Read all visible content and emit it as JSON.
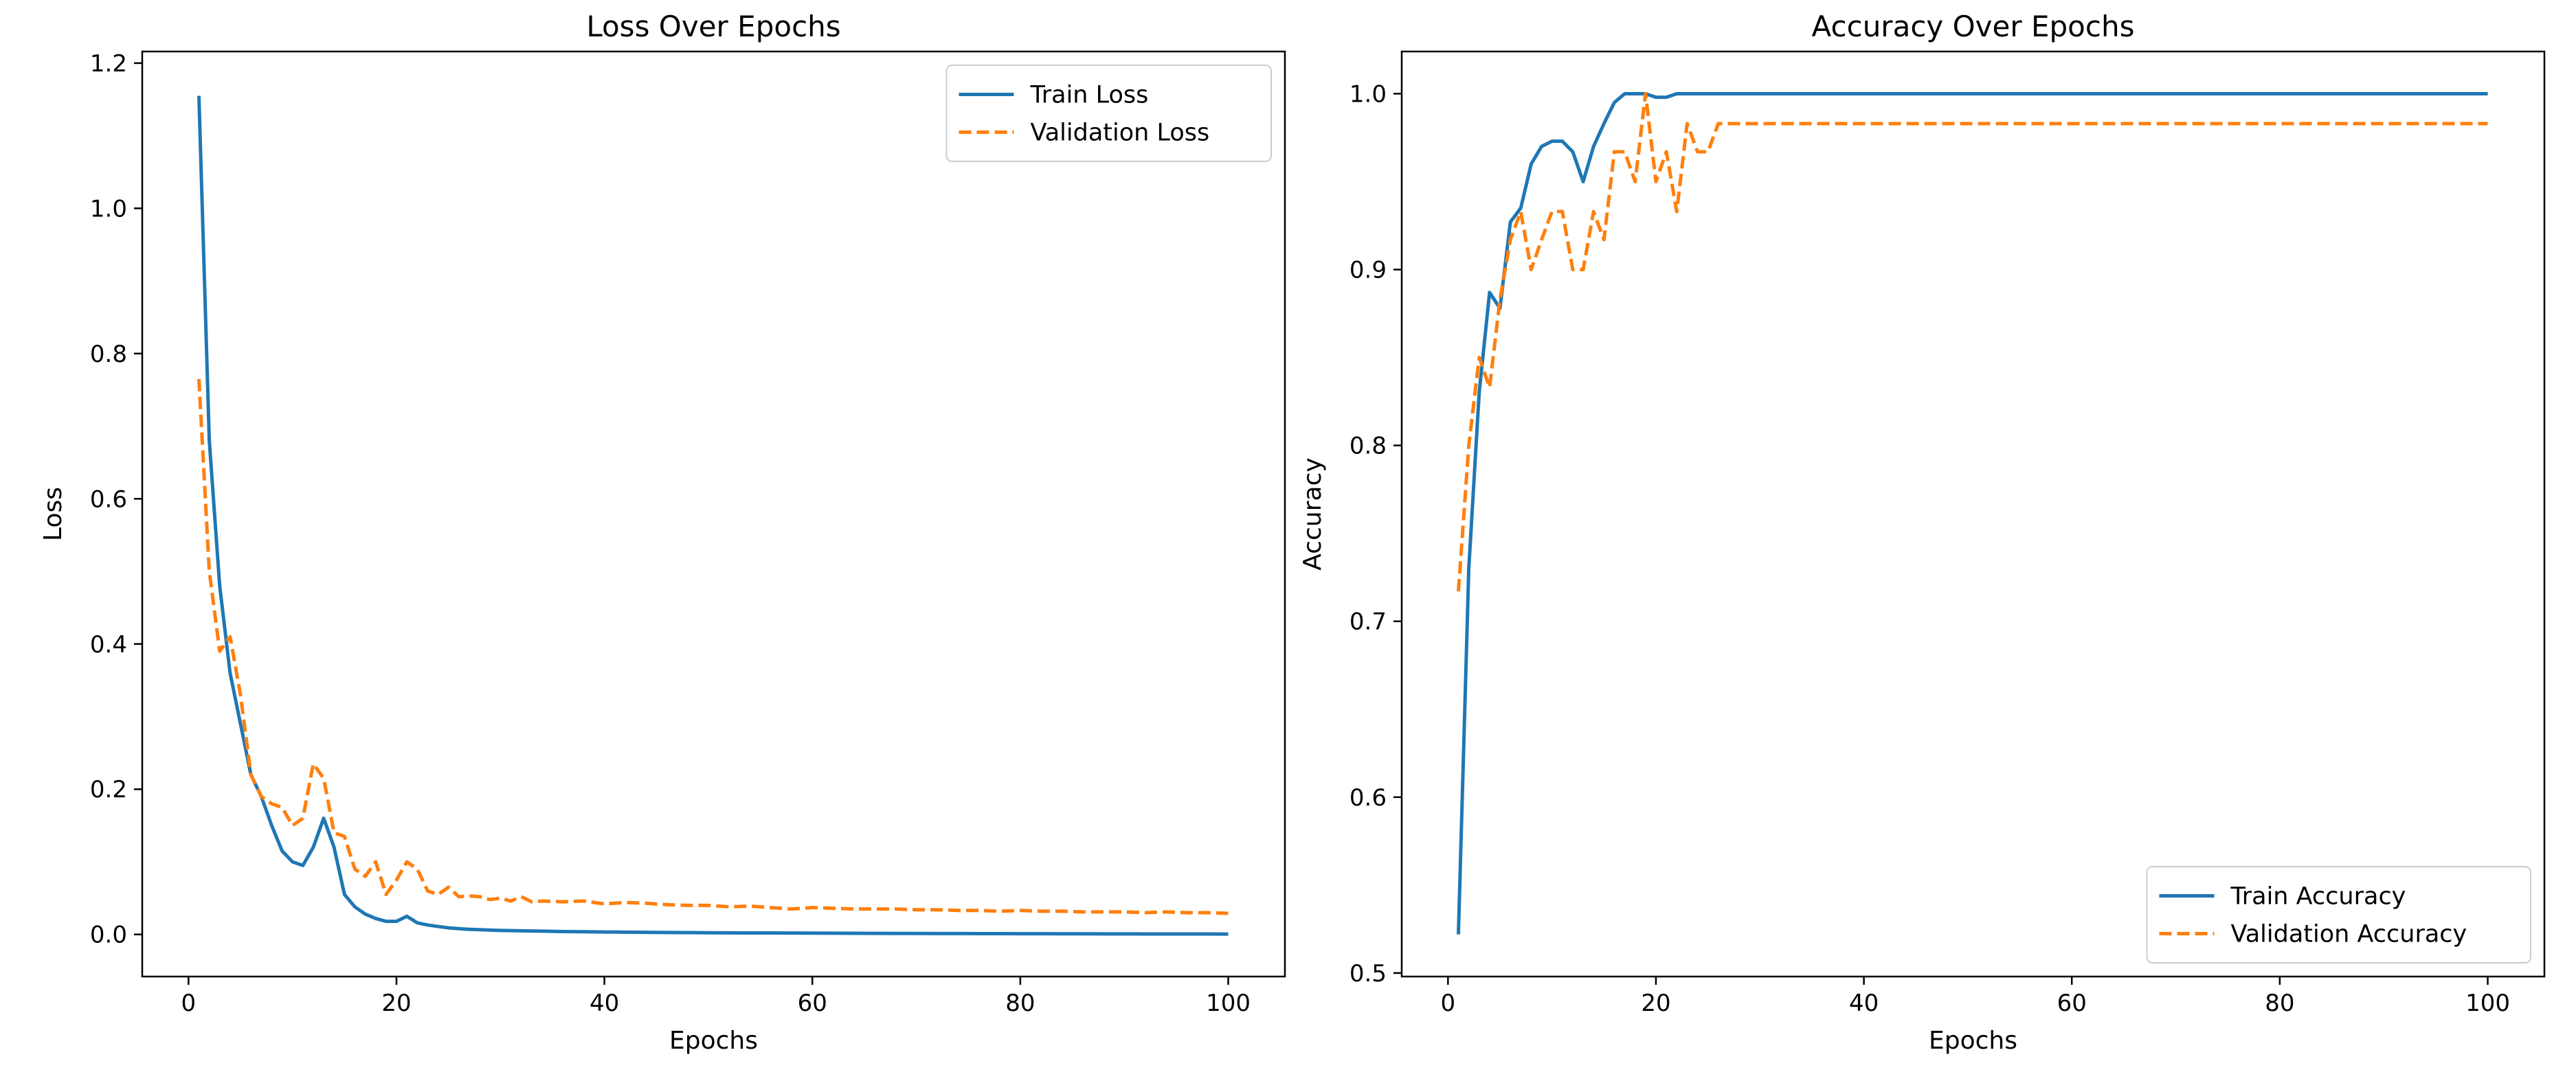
{
  "chart_data": [
    {
      "type": "line",
      "title": "Loss Over Epochs",
      "xlabel": "Epochs",
      "ylabel": "Loss",
      "xlim": [
        -4.45,
        105.45
      ],
      "ylim": [
        -0.058,
        1.216
      ],
      "xticks": [
        0,
        20,
        40,
        60,
        80,
        100
      ],
      "yticks": [
        0.0,
        0.2,
        0.4,
        0.6,
        0.8,
        1.0,
        1.2
      ],
      "ytick_decimals": 1,
      "legend_position": "upper right",
      "grid": false,
      "series": [
        {
          "name": "Train Loss",
          "color": "#1f77b4",
          "style": "solid",
          "x": [
            1,
            2,
            3,
            4,
            5,
            6,
            7,
            8,
            9,
            10,
            11,
            12,
            13,
            14,
            15,
            16,
            17,
            18,
            19,
            20,
            21,
            22,
            23,
            24,
            25,
            26,
            27,
            28,
            29,
            30,
            32,
            34,
            36,
            38,
            40,
            42,
            44,
            46,
            48,
            50,
            52,
            54,
            56,
            58,
            60,
            62,
            64,
            66,
            68,
            70,
            72,
            74,
            76,
            78,
            80,
            82,
            84,
            86,
            88,
            90,
            92,
            94,
            96,
            98,
            100
          ],
          "y": [
            1.155,
            0.68,
            0.48,
            0.36,
            0.29,
            0.22,
            0.19,
            0.15,
            0.115,
            0.1,
            0.095,
            0.12,
            0.16,
            0.12,
            0.055,
            0.038,
            0.028,
            0.022,
            0.018,
            0.018,
            0.025,
            0.016,
            0.013,
            0.011,
            0.009,
            0.008,
            0.007,
            0.0065,
            0.006,
            0.0055,
            0.005,
            0.0045,
            0.004,
            0.0037,
            0.0034,
            0.0031,
            0.0029,
            0.0027,
            0.0025,
            0.0023,
            0.0022,
            0.0021,
            0.002,
            0.0019,
            0.0018,
            0.0017,
            0.0016,
            0.0015,
            0.0014,
            0.0013,
            0.0012,
            0.0012,
            0.0011,
            0.0011,
            0.001,
            0.001,
            0.0009,
            0.0009,
            0.0008,
            0.0008,
            0.0007,
            0.0007,
            0.0006,
            0.0006,
            0.0005
          ]
        },
        {
          "name": "Validation Loss",
          "color": "#ff7f0e",
          "style": "dashed",
          "x": [
            1,
            2,
            3,
            4,
            5,
            6,
            7,
            8,
            9,
            10,
            11,
            12,
            13,
            14,
            15,
            16,
            17,
            18,
            19,
            20,
            21,
            22,
            23,
            24,
            25,
            26,
            27,
            28,
            29,
            30,
            31,
            32,
            33,
            34,
            36,
            38,
            40,
            42,
            44,
            46,
            48,
            50,
            52,
            54,
            56,
            58,
            60,
            62,
            64,
            66,
            68,
            70,
            72,
            74,
            76,
            78,
            80,
            82,
            84,
            86,
            88,
            90,
            92,
            94,
            96,
            98,
            100
          ],
          "y": [
            0.765,
            0.5,
            0.39,
            0.41,
            0.33,
            0.22,
            0.19,
            0.18,
            0.175,
            0.15,
            0.16,
            0.235,
            0.215,
            0.14,
            0.135,
            0.09,
            0.08,
            0.1,
            0.055,
            0.075,
            0.1,
            0.09,
            0.06,
            0.055,
            0.065,
            0.052,
            0.053,
            0.052,
            0.048,
            0.05,
            0.046,
            0.052,
            0.045,
            0.046,
            0.045,
            0.046,
            0.042,
            0.044,
            0.043,
            0.041,
            0.04,
            0.04,
            0.038,
            0.039,
            0.037,
            0.035,
            0.037,
            0.036,
            0.035,
            0.035,
            0.035,
            0.034,
            0.034,
            0.033,
            0.033,
            0.032,
            0.033,
            0.032,
            0.032,
            0.031,
            0.031,
            0.031,
            0.03,
            0.031,
            0.03,
            0.03,
            0.029
          ]
        }
      ]
    },
    {
      "type": "line",
      "title": "Accuracy Over Epochs",
      "xlabel": "Epochs",
      "ylabel": "Accuracy",
      "xlim": [
        -4.45,
        105.45
      ],
      "ylim": [
        0.498,
        1.024
      ],
      "xticks": [
        0,
        20,
        40,
        60,
        80,
        100
      ],
      "yticks": [
        0.5,
        0.6,
        0.7,
        0.8,
        0.9,
        1.0
      ],
      "ytick_decimals": 1,
      "legend_position": "lower right",
      "grid": false,
      "series": [
        {
          "name": "Train Accuracy",
          "color": "#1f77b4",
          "style": "solid",
          "x": [
            1,
            2,
            3,
            4,
            5,
            6,
            7,
            8,
            9,
            10,
            11,
            12,
            13,
            14,
            15,
            16,
            17,
            18,
            19,
            20,
            21,
            22,
            23,
            100
          ],
          "y": [
            0.522,
            0.73,
            0.83,
            0.887,
            0.878,
            0.927,
            0.935,
            0.96,
            0.97,
            0.973,
            0.973,
            0.967,
            0.95,
            0.97,
            0.983,
            0.995,
            1.0,
            1.0,
            1.0,
            0.998,
            0.998,
            1.0,
            1.0,
            1.0
          ]
        },
        {
          "name": "Validation Accuracy",
          "color": "#ff7f0e",
          "style": "dashed",
          "x": [
            1,
            2,
            3,
            4,
            5,
            6,
            7,
            8,
            9,
            10,
            11,
            12,
            13,
            14,
            15,
            16,
            17,
            18,
            19,
            20,
            21,
            22,
            23,
            24,
            25,
            26,
            27,
            100
          ],
          "y": [
            0.717,
            0.8,
            0.85,
            0.833,
            0.883,
            0.917,
            0.933,
            0.9,
            0.917,
            0.933,
            0.933,
            0.9,
            0.9,
            0.933,
            0.917,
            0.967,
            0.967,
            0.95,
            1.0,
            0.95,
            0.967,
            0.933,
            0.983,
            0.967,
            0.967,
            0.983,
            0.983,
            0.983
          ]
        }
      ]
    }
  ]
}
